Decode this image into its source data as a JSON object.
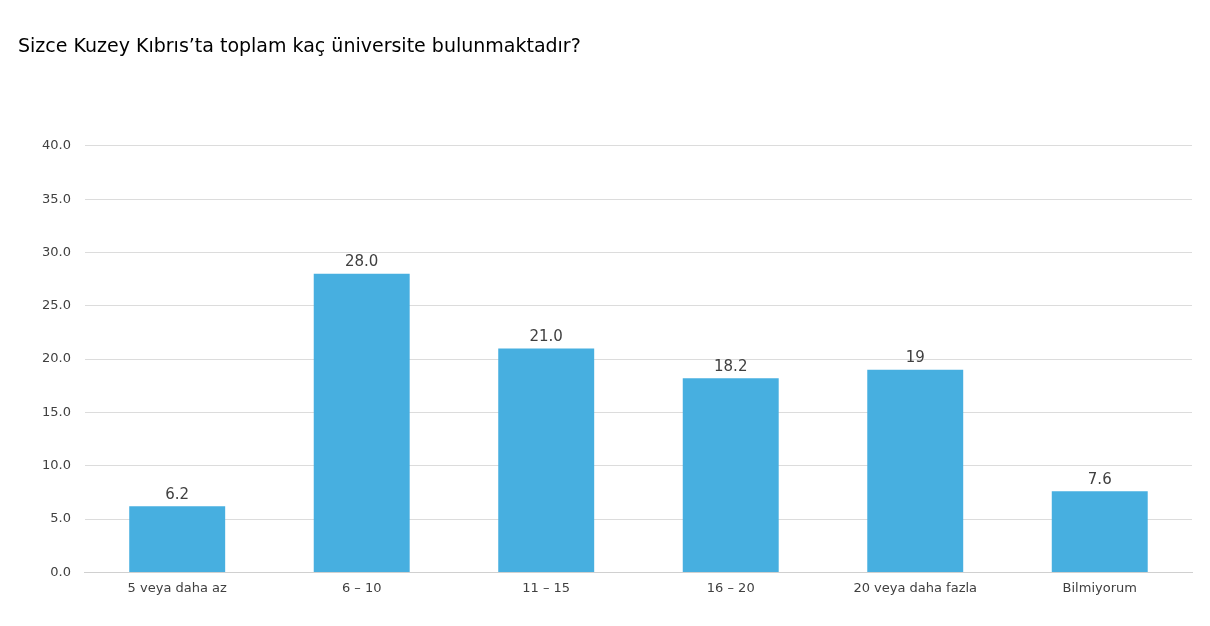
{
  "chart_data": {
    "type": "bar",
    "title": "Sizce Kuzey Kıbrıs’ta toplam kaç üniversite bulunmaktadır?",
    "categories": [
      "5 veya daha az",
      "6 – 10",
      "11 – 15",
      "16 – 20",
      "20 veya daha fazla",
      "Bilmiyorum"
    ],
    "values": [
      6.2,
      28.0,
      21.0,
      18.2,
      19,
      7.6
    ],
    "value_labels": [
      "6.2",
      "28.0",
      "21.0",
      "18.2",
      "19",
      "7.6"
    ],
    "color": "#47afe0",
    "ylim": [
      0,
      40
    ],
    "yticks": [
      {
        "value": 0,
        "label": "0.0"
      },
      {
        "value": 5,
        "label": "5.0"
      },
      {
        "value": 10,
        "label": "10.0"
      },
      {
        "value": 15,
        "label": "15.0"
      },
      {
        "value": 20,
        "label": "20.0"
      },
      {
        "value": 25,
        "label": "25.0"
      },
      {
        "value": 30,
        "label": "30.0"
      },
      {
        "value": 35,
        "label": "35.0"
      },
      {
        "value": 40,
        "label": "40.0"
      }
    ],
    "grid": "y",
    "legend": false
  }
}
